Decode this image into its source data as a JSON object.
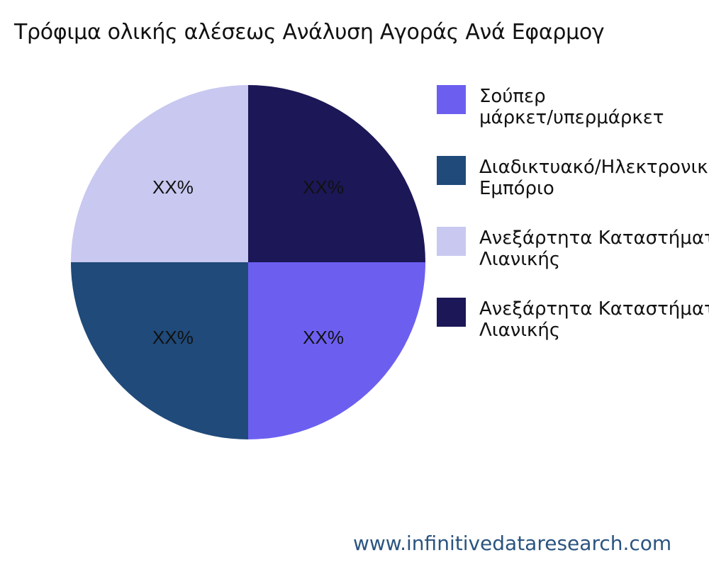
{
  "title": "Τρόφιμα ολικής αλέσεως Ανάλυση Αγοράς Ανά Εφαρμογ",
  "footer": "www.infinitivedataresearch.com",
  "chart_data": {
    "type": "pie",
    "title": "Τρόφιμα ολικής αλέσεως Ανάλυση Αγοράς Ανά Εφαρμογ",
    "categories": [
      "Σούπερ μάρκετ/υπερμάρκετ",
      "Διαδικτυακό/Ηλεκτρονικό Εμπόριο",
      "Ανεξάρτητα Καταστήματα Λιανικής",
      "Ανεξάρτητα Καταστήματα Λιανικής"
    ],
    "legend_lines": [
      [
        "Σούπερ",
        "μάρκετ/υπερμάρκετ"
      ],
      [
        "Διαδικτυακό/Ηλεκτρονικό",
        "Εμπόριο"
      ],
      [
        "Ανεξάρτητα Καταστήματα",
        "Λιανικής"
      ],
      [
        "Ανεξάρτητα Καταστήματα",
        "Λιανικής"
      ]
    ],
    "values": [
      25,
      25,
      25,
      25
    ],
    "data_labels": [
      "XX%",
      "XX%",
      "XX%",
      "XX%"
    ],
    "colors": [
      "#6c5ff0",
      "#1f4a7a",
      "#c8c8f0",
      "#1c1757"
    ],
    "legend_position": "right"
  }
}
